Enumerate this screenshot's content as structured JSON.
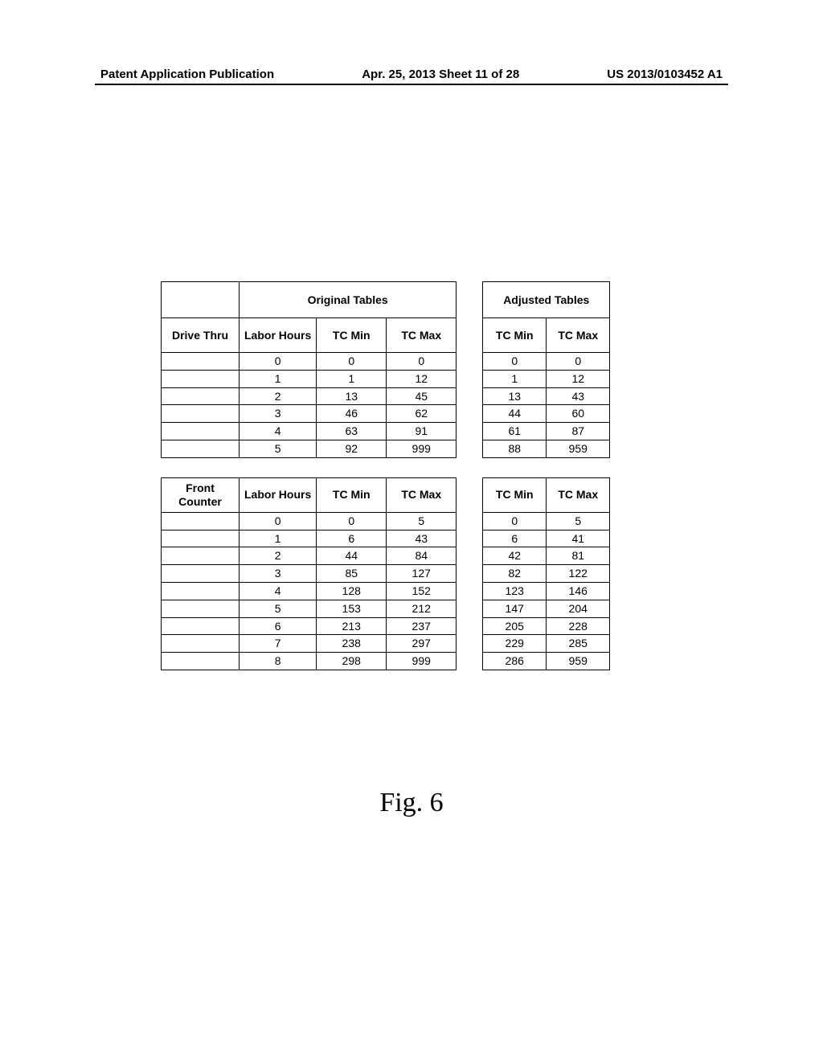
{
  "header": {
    "left": "Patent Application Publication",
    "middle": "Apr. 25, 2013  Sheet 11 of 28",
    "right": "US 2013/0103452 A1"
  },
  "figure_label": "Fig. 6",
  "original_title": "Original Tables",
  "adjusted_title": "Adjusted Tables",
  "columns": {
    "labor_hours": "Labor Hours",
    "tc_min": "TC Min",
    "tc_max": "TC Max"
  },
  "drive_thru": {
    "label": "Drive Thru",
    "rows": [
      {
        "lh": "0",
        "omin": "0",
        "omax": "0",
        "amin": "0",
        "amax": "0"
      },
      {
        "lh": "1",
        "omin": "1",
        "omax": "12",
        "amin": "1",
        "amax": "12"
      },
      {
        "lh": "2",
        "omin": "13",
        "omax": "45",
        "amin": "13",
        "amax": "43"
      },
      {
        "lh": "3",
        "omin": "46",
        "omax": "62",
        "amin": "44",
        "amax": "60"
      },
      {
        "lh": "4",
        "omin": "63",
        "omax": "91",
        "amin": "61",
        "amax": "87"
      },
      {
        "lh": "5",
        "omin": "92",
        "omax": "999",
        "amin": "88",
        "amax": "959"
      }
    ]
  },
  "front_counter": {
    "label": "Front Counter",
    "rows": [
      {
        "lh": "0",
        "omin": "0",
        "omax": "5",
        "amin": "0",
        "amax": "5"
      },
      {
        "lh": "1",
        "omin": "6",
        "omax": "43",
        "amin": "6",
        "amax": "41"
      },
      {
        "lh": "2",
        "omin": "44",
        "omax": "84",
        "amin": "42",
        "amax": "81"
      },
      {
        "lh": "3",
        "omin": "85",
        "omax": "127",
        "amin": "82",
        "amax": "122"
      },
      {
        "lh": "4",
        "omin": "128",
        "omax": "152",
        "amin": "123",
        "amax": "146"
      },
      {
        "lh": "5",
        "omin": "153",
        "omax": "212",
        "amin": "147",
        "amax": "204"
      },
      {
        "lh": "6",
        "omin": "213",
        "omax": "237",
        "amin": "205",
        "amax": "228"
      },
      {
        "lh": "7",
        "omin": "238",
        "omax": "297",
        "amin": "229",
        "amax": "285"
      },
      {
        "lh": "8",
        "omin": "298",
        "omax": "999",
        "amin": "286",
        "amax": "959"
      }
    ]
  }
}
